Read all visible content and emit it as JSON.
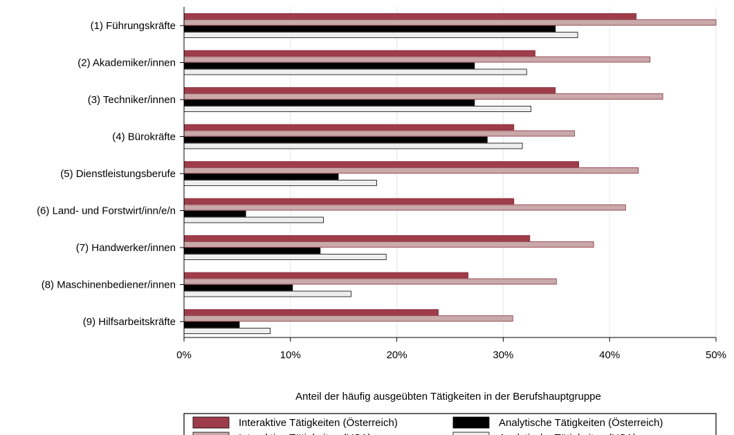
{
  "chart_data": {
    "type": "bar",
    "orientation": "horizontal",
    "categories": [
      "(1) Führungskräfte",
      "(2) Akademiker/innen",
      "(3) Techniker/innen",
      "(4) Bürokräfte",
      "(5) Dienstleistungsberufe",
      "(6) Land- und Forstwirt/inn/e/n",
      "(7) Handwerker/innen",
      "(8) Maschinenbediener/innen",
      "(9) Hilfsarbeitskräfte"
    ],
    "series": [
      {
        "name": "Interaktive Tätigkeiten (Österreich)",
        "color": "#9e3c4a",
        "values": [
          42.5,
          33.0,
          34.9,
          31.0,
          37.1,
          31.0,
          32.5,
          26.7,
          23.9
        ]
      },
      {
        "name": "Interaktive Tätigkeiten (USA)",
        "color": "#c9a9a9",
        "values": [
          50.0,
          43.8,
          45.0,
          36.7,
          42.7,
          41.5,
          38.5,
          35.0,
          30.9
        ]
      },
      {
        "name": "Analytische Tätigkeiten (Österreich)",
        "color": "#000000",
        "values": [
          34.9,
          27.3,
          27.3,
          28.5,
          14.5,
          5.8,
          12.8,
          10.2,
          5.2
        ]
      },
      {
        "name": "Analytische Tätigkeiten (USA)",
        "color": "#eeeeee",
        "values": [
          37.0,
          32.2,
          32.6,
          31.8,
          18.1,
          13.1,
          19.0,
          15.7,
          8.1
        ]
      }
    ],
    "xlabel": "Anteil der häufig ausgeübten Tätigkeiten in der Berufshauptgruppe",
    "ylabel": "",
    "xlim": [
      0,
      50
    ],
    "xticks": [
      0,
      10,
      20,
      30,
      40,
      50
    ],
    "xtick_labels": [
      "0%",
      "10%",
      "20%",
      "30%",
      "40%",
      "50%"
    ],
    "grid": true,
    "legend": {
      "placement": "bottom",
      "columns": 2
    }
  }
}
